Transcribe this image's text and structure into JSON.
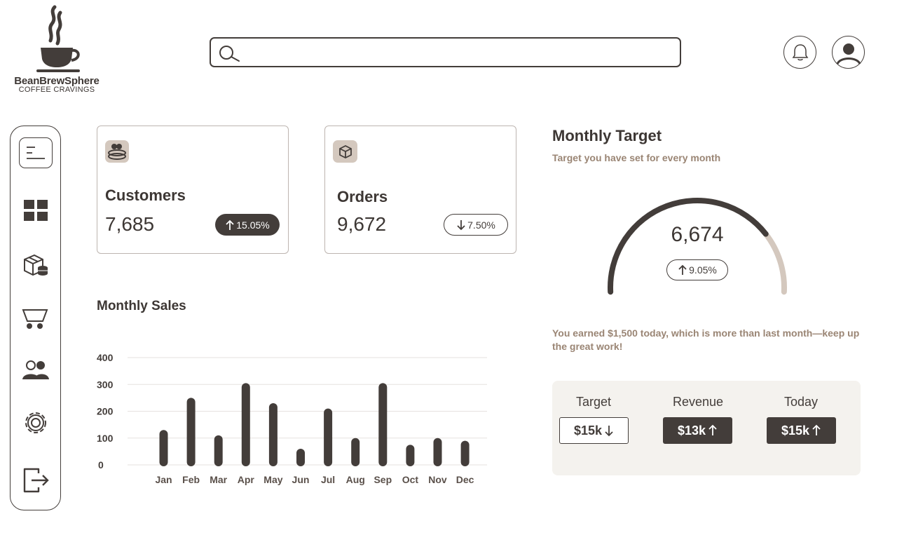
{
  "brand": {
    "name": "BeanBrewSphere",
    "tagline": "COFFEE CRAVINGS"
  },
  "search": {
    "placeholder": "",
    "value": ""
  },
  "header": {
    "icons": [
      "bell-icon",
      "user-avatar-icon"
    ]
  },
  "sidebar": {
    "items": [
      {
        "name": "menu",
        "icon": "menu-icon"
      },
      {
        "name": "dashboard",
        "icon": "grid-icon"
      },
      {
        "name": "products",
        "icon": "boxes-coins-icon"
      },
      {
        "name": "cart",
        "icon": "cart-icon"
      },
      {
        "name": "users",
        "icon": "users-icon"
      },
      {
        "name": "settings",
        "icon": "gear-icon"
      },
      {
        "name": "logout",
        "icon": "logout-icon"
      }
    ]
  },
  "stats": {
    "customers": {
      "title": "Customers",
      "value": "7,685",
      "change": "15.05%",
      "direction": "up"
    },
    "orders": {
      "title": "Orders",
      "value": "9,672",
      "change": "7.50%",
      "direction": "down"
    }
  },
  "monthly_sales": {
    "title": "Monthly Sales"
  },
  "chart_data": {
    "type": "bar",
    "title": "Monthly Sales",
    "categories": [
      "Jan",
      "Feb",
      "Mar",
      "Apr",
      "May",
      "Jun",
      "Jul",
      "Aug",
      "Sep",
      "Oct",
      "Nov",
      "Dec"
    ],
    "values": [
      130,
      250,
      110,
      305,
      230,
      60,
      210,
      100,
      305,
      75,
      100,
      90
    ],
    "yticks": [
      0,
      100,
      200,
      300,
      400
    ],
    "ylim": [
      0,
      400
    ],
    "grid": true,
    "colors": {
      "bar": "#433d3a",
      "grid": "#e6e2df"
    }
  },
  "monthly_target": {
    "title": "Monthly Target",
    "subtitle": "Target you have set for every month",
    "value": "6,674",
    "change": "9.05%",
    "progress_fraction": 0.78,
    "message": "You earned $1,500 today, which is more than last month—keep up the great work!"
  },
  "summary": {
    "target": {
      "label": "Target",
      "value": "$15k",
      "direction": "down"
    },
    "revenue": {
      "label": "Revenue",
      "value": "$13k",
      "direction": "up"
    },
    "today": {
      "label": "Today",
      "value": "$15k",
      "direction": "up"
    }
  },
  "colors": {
    "primary": "#433d3a",
    "accent": "#d4c8be",
    "muted": "#9a8574",
    "panel": "#f4f2ee"
  }
}
